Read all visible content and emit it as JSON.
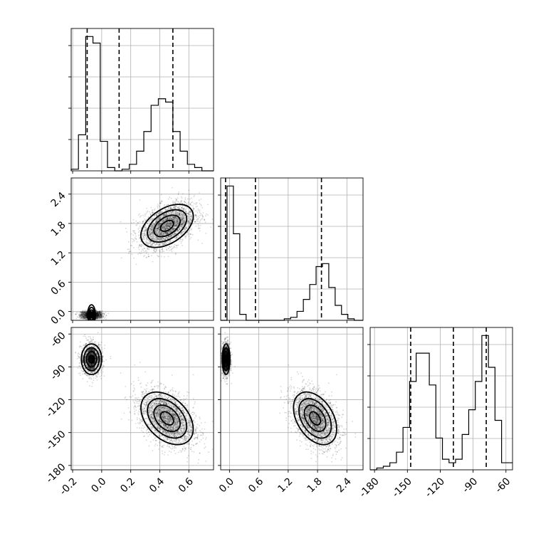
{
  "chart_data": {
    "type": "corner",
    "grid": true,
    "parameters": [
      {
        "index": 0,
        "range": [
          -0.21,
          0.77
        ],
        "ticks": [
          "-0.2",
          "0.0",
          "0.2",
          "0.4",
          "0.6"
        ],
        "tick_values": [
          -0.2,
          0.0,
          0.2,
          0.4,
          0.6
        ]
      },
      {
        "index": 1,
        "range": [
          -0.18,
          2.73
        ],
        "ticks": [
          "0.0",
          "0.6",
          "1.2",
          "1.8",
          "2.4"
        ],
        "tick_values": [
          0.0,
          0.6,
          1.2,
          1.8,
          2.4
        ]
      },
      {
        "index": 2,
        "range": [
          -184,
          -54
        ],
        "ticks": [
          "-180",
          "-150",
          "-120",
          "-90",
          "-60"
        ],
        "tick_values": [
          -180,
          -150,
          -120,
          -90,
          -60
        ]
      }
    ],
    "histograms": [
      {
        "param": 0,
        "bin_edges": [
          -0.21,
          -0.16,
          -0.11,
          -0.06,
          -0.01,
          0.04,
          0.09,
          0.14,
          0.19,
          0.24,
          0.29,
          0.34,
          0.39,
          0.44,
          0.49,
          0.54,
          0.59,
          0.64,
          0.69,
          0.77
        ],
        "counts": [
          0.5,
          11,
          41,
          39,
          9,
          1,
          0,
          0.5,
          2,
          6,
          12,
          20,
          22,
          21,
          12,
          6,
          2,
          1,
          0
        ],
        "quantiles": [
          -0.1,
          0.12,
          0.49
        ]
      },
      {
        "param": 1,
        "bin_edges": [
          -0.18,
          -0.05,
          0.08,
          0.21,
          0.34,
          0.47,
          0.6,
          0.73,
          0.86,
          0.99,
          1.12,
          1.25,
          1.38,
          1.51,
          1.64,
          1.77,
          1.9,
          2.03,
          2.16,
          2.29,
          2.42,
          2.55,
          2.73
        ],
        "counts": [
          0,
          45,
          29,
          2,
          0,
          0,
          0,
          0,
          0,
          0,
          0.5,
          1,
          3,
          7,
          12,
          18,
          19,
          11,
          5,
          2,
          0.5,
          0
        ],
        "quantiles": [
          -0.08,
          0.53,
          1.88
        ]
      },
      {
        "param": 2,
        "bin_edges": [
          -184,
          -178,
          -172,
          -166,
          -160,
          -154,
          -148,
          -142,
          -136,
          -130,
          -124,
          -118,
          -112,
          -106,
          -100,
          -94,
          -88,
          -82,
          -76,
          -70,
          -64,
          -54
        ],
        "counts": [
          0,
          0.5,
          1,
          2,
          5,
          12,
          25,
          33,
          33,
          24,
          9,
          3,
          2,
          3,
          10,
          17,
          25,
          38,
          29,
          14,
          2
        ],
        "quantiles": [
          -147,
          -108,
          -78
        ]
      }
    ],
    "modes": [
      {
        "mean": [
          -0.07,
          -0.07,
          -83
        ],
        "sd": [
          0.035,
          0.04,
          7
        ],
        "weight": 0.5
      },
      {
        "mean": [
          0.45,
          1.75,
          -137
        ],
        "sd": [
          0.09,
          0.22,
          12
        ],
        "weight": 0.5
      }
    ]
  }
}
